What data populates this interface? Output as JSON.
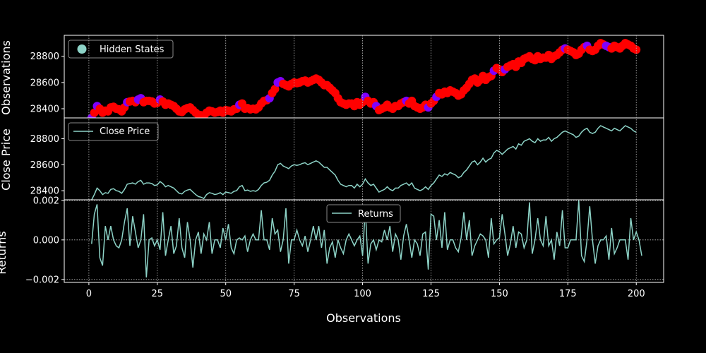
{
  "chart_data": [
    {
      "panel": "top",
      "type": "scatter",
      "ylabel": "Observations",
      "legend": {
        "label": "Hidden States",
        "placement": "top-left"
      },
      "yticks": [
        28400,
        28600,
        28800
      ],
      "ylim": [
        28330,
        28960
      ],
      "state_colors": {
        "0": "#ff0000",
        "1": "#7f00ff"
      },
      "series": [
        {
          "x": [
            1,
            2,
            3,
            4,
            5,
            6,
            7,
            8,
            9,
            10,
            11,
            12,
            13,
            14,
            15,
            16,
            17,
            18,
            19,
            20,
            21,
            22,
            23,
            24,
            25,
            26,
            27,
            28,
            29,
            30,
            31,
            32,
            33,
            34,
            35,
            36,
            37,
            38,
            39,
            40,
            41,
            42,
            43,
            44,
            45,
            46,
            47,
            48,
            49,
            50,
            51,
            52,
            53,
            54,
            55,
            56,
            57,
            58,
            59,
            60,
            61,
            62,
            63,
            64,
            65,
            66,
            67,
            68,
            69,
            70,
            71,
            72,
            73,
            74,
            75,
            76,
            77,
            78,
            79,
            80,
            81,
            82,
            83,
            84,
            85,
            86,
            87,
            88,
            89,
            90,
            91,
            92,
            93,
            94,
            95,
            96,
            97,
            98,
            99,
            100,
            101,
            102,
            103,
            104,
            105,
            106,
            107,
            108,
            109,
            110,
            111,
            112,
            113,
            114,
            115,
            116,
            117,
            118,
            119,
            120,
            121,
            122,
            123,
            124,
            125,
            126,
            127,
            128,
            129,
            130,
            131,
            132,
            133,
            134,
            135,
            136,
            137,
            138,
            139,
            140,
            141,
            142,
            143,
            144,
            145,
            146,
            147,
            148,
            149,
            150,
            151,
            152,
            153,
            154,
            155,
            156,
            157,
            158,
            159,
            160,
            161,
            162,
            163,
            164,
            165,
            166,
            167,
            168,
            169,
            170,
            171,
            172,
            173,
            174,
            175,
            176,
            177,
            178,
            179,
            180,
            181,
            182,
            183,
            184,
            185,
            186,
            187,
            188,
            189,
            190,
            191,
            192,
            193,
            194,
            195,
            196,
            197,
            198,
            199,
            200
          ],
          "y": [
            28330,
            28370,
            28420,
            28400,
            28370,
            28385,
            28380,
            28410,
            28415,
            28400,
            28395,
            28380,
            28410,
            28450,
            28455,
            28460,
            28450,
            28470,
            28480,
            28450,
            28460,
            28460,
            28455,
            28440,
            28445,
            28470,
            28455,
            28430,
            28440,
            28430,
            28420,
            28400,
            28380,
            28375,
            28395,
            28405,
            28410,
            28390,
            28370,
            28355,
            28350,
            28340,
            28370,
            28385,
            28380,
            28370,
            28375,
            28385,
            28370,
            28390,
            28385,
            28380,
            28395,
            28400,
            28430,
            28440,
            28400,
            28405,
            28395,
            28400,
            28395,
            28410,
            28440,
            28460,
            28465,
            28480,
            28520,
            28550,
            28600,
            28610,
            28590,
            28580,
            28570,
            28590,
            28600,
            28595,
            28600,
            28610,
            28615,
            28600,
            28610,
            28620,
            28630,
            28620,
            28600,
            28580,
            28580,
            28560,
            28540,
            28520,
            28480,
            28450,
            28440,
            28430,
            28440,
            28440,
            28420,
            28450,
            28430,
            28450,
            28490,
            28460,
            28440,
            28450,
            28420,
            28390,
            28400,
            28410,
            28430,
            28410,
            28400,
            28420,
            28420,
            28440,
            28450,
            28460,
            28440,
            28460,
            28420,
            28410,
            28400,
            28410,
            28430,
            28410,
            28440,
            28460,
            28490,
            28520,
            28510,
            28530,
            28520,
            28540,
            28530,
            28520,
            28500,
            28510,
            28540,
            28560,
            28590,
            28620,
            28630,
            28600,
            28620,
            28650,
            28620,
            28640,
            28650,
            28690,
            28710,
            28700,
            28680,
            28700,
            28720,
            28730,
            28740,
            28720,
            28760,
            28750,
            28780,
            28790,
            28800,
            28780,
            28770,
            28800,
            28780,
            28790,
            28790,
            28810,
            28780,
            28800,
            28810,
            28830,
            28850,
            28860,
            28850,
            28840,
            28830,
            28810,
            28820,
            28850,
            28870,
            28880,
            28850,
            28840,
            28850,
            28880,
            28900,
            28890,
            28880,
            28870,
            28860,
            28880,
            28870,
            28860,
            28880,
            28900,
            28890,
            28880,
            28860,
            28850
          ],
          "state": [
            1,
            0,
            1,
            0,
            0,
            0,
            0,
            0,
            0,
            0,
            0,
            0,
            0,
            1,
            0,
            0,
            0,
            1,
            1,
            0,
            0,
            0,
            0,
            0,
            0,
            1,
            0,
            0,
            0,
            0,
            0,
            0,
            0,
            0,
            0,
            0,
            0,
            0,
            0,
            0,
            0,
            0,
            0,
            0,
            0,
            0,
            0,
            0,
            0,
            0,
            0,
            0,
            0,
            0,
            1,
            0,
            0,
            0,
            0,
            0,
            0,
            0,
            0,
            0,
            0,
            1,
            0,
            0,
            1,
            1,
            0,
            0,
            0,
            0,
            0,
            0,
            0,
            0,
            0,
            0,
            0,
            0,
            0,
            0,
            0,
            0,
            0,
            0,
            0,
            0,
            0,
            0,
            0,
            0,
            0,
            0,
            0,
            0,
            0,
            0,
            1,
            0,
            0,
            0,
            1,
            0,
            0,
            0,
            0,
            0,
            0,
            0,
            0,
            0,
            0,
            1,
            0,
            0,
            0,
            0,
            0,
            0,
            0,
            1,
            0,
            0,
            1,
            0,
            0,
            0,
            0,
            0,
            0,
            0,
            0,
            0,
            0,
            0,
            0,
            0,
            0,
            0,
            0,
            0,
            0,
            0,
            0,
            1,
            0,
            0,
            0,
            1,
            0,
            0,
            0,
            0,
            0,
            0,
            0,
            0,
            0,
            0,
            0,
            0,
            0,
            0,
            0,
            0,
            0,
            0,
            0,
            0,
            0,
            1,
            0,
            0,
            0,
            0,
            0,
            0,
            0,
            1,
            0,
            0,
            0,
            0,
            0,
            0,
            1,
            1,
            0,
            0,
            0,
            0,
            0,
            0,
            0,
            0,
            0,
            0
          ]
        }
      ]
    },
    {
      "panel": "middle",
      "type": "line",
      "ylabel": "Close Price",
      "legend": {
        "label": "Close Price",
        "placement": "top-left"
      },
      "color": "#8dd3c7",
      "yticks": [
        28400,
        28600,
        28800
      ],
      "ylim": [
        28330,
        28960
      ],
      "series": [
        {
          "name": "Close Price",
          "source": "same as top panel y"
        }
      ]
    },
    {
      "panel": "bottom",
      "type": "line",
      "ylabel": "Returns",
      "xlabel": "Observations",
      "legend": {
        "label": "Returns",
        "placement": "top-center"
      },
      "color": "#8dd3c7",
      "grid": true,
      "yticks": [
        -0.002,
        0.0,
        0.002
      ],
      "ytick_labels": [
        "−0.002",
        "0.000",
        "0.002"
      ],
      "ylim": [
        -0.00215,
        0.00203
      ],
      "xticks": [
        0,
        25,
        50,
        75,
        100,
        125,
        150,
        175,
        200
      ],
      "xlim": [
        -9,
        210
      ],
      "series": [
        {
          "name": "Returns",
          "values": [
            -0.0002,
            0.0013,
            0.0018,
            -0.0009,
            -0.0013,
            0.0007,
            0.0,
            0.0007,
            0.0,
            -0.0003,
            -0.0004,
            0.0,
            0.0009,
            0.0016,
            -0.0003,
            0.0012,
            0.0004,
            -0.0004,
            0.0,
            0.0013,
            -0.0019,
            0.0,
            0.0001,
            -0.0003,
            0.0,
            -0.0005,
            0.0014,
            -0.0008,
            0.0,
            0.0007,
            -0.0007,
            -0.0003,
            0.0011,
            -0.0004,
            -0.0009,
            0.0009,
            0.0,
            -0.0014,
            0.0,
            0.0004,
            -0.0007,
            0.0003,
            0.0,
            0.0009,
            -0.0007,
            0.0,
            0.0,
            -0.0004,
            0.0006,
            0.0,
            0.0008,
            -0.0004,
            -0.0007,
            0.0,
            0.0001,
            0.0,
            0.0002,
            -0.0006,
            0.0,
            0.0003,
            0.0,
            0.0,
            0.0015,
            0.0,
            0.0,
            -0.0005,
            0.0011,
            0.0003,
            0.0005,
            -0.0006,
            0.0,
            0.0016,
            -0.0012,
            0.0,
            0.0,
            0.0005,
            0.0,
            -0.0003,
            0.0002,
            -0.0006,
            0.0,
            0.0007,
            0.0,
            0.0007,
            -0.0004,
            0.0005,
            -0.0012,
            -0.0004,
            -0.0001,
            -0.0009,
            0.0,
            -0.0004,
            -0.0007,
            0.0,
            0.0003,
            0.0,
            -0.0003,
            0.0,
            0.0002,
            -0.0008,
            0.0016,
            -0.0012,
            -0.0002,
            0.0,
            -0.0005,
            0.0,
            -0.0001,
            0.0005,
            0.0,
            0.0007,
            -0.0006,
            0.0003,
            0.0,
            -0.001,
            0.0002,
            0.0008,
            0.0,
            -0.0009,
            0.0,
            -0.0002,
            -0.0008,
            0.0003,
            0.0004,
            -0.0015,
            0.0013,
            0.0012,
            0.0,
            0.001,
            -0.0004,
            0.0014,
            -0.0005,
            0.0,
            0.0,
            -0.0004,
            -0.0006,
            0.0001,
            0.0014,
            0.0,
            0.001,
            -0.0008,
            -0.0003,
            0.0,
            0.0003,
            0.0002,
            0.0,
            -0.0009,
            0.0011,
            -0.0002,
            0.0,
            0.0001,
            0.0013,
            0.0003,
            -0.0008,
            -0.0002,
            0.0007,
            -0.0004,
            0.0004,
            0.0003,
            -0.0004,
            0.0,
            0.0019,
            -0.0007,
            0.0,
            0.0011,
            0.0,
            -0.0003,
            0.0012,
            -0.0003,
            0.0,
            -0.001,
            0.0004,
            -0.0003,
            0.0015,
            -0.0004,
            -0.0004,
            0.0,
            0.0,
            0.0,
            0.002,
            -0.0008,
            -0.0011,
            0.0,
            0.0017,
            0.0,
            -0.0012,
            -0.0003,
            0.0,
            0.0,
            0.0002,
            -0.001,
            0.0006,
            -0.0007,
            -0.0004,
            0.0,
            0.0,
            0.0,
            -0.001,
            0.0011,
            0.0,
            0.0004,
            0.0,
            -0.0008
          ]
        }
      ]
    }
  ]
}
